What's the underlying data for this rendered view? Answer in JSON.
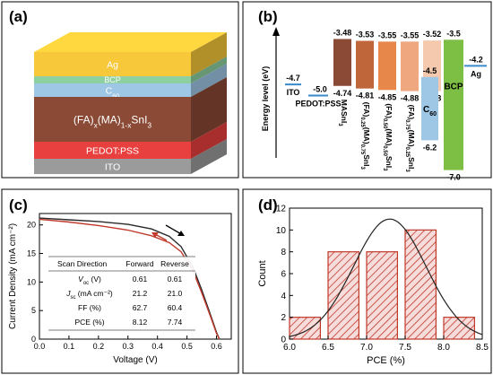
{
  "panels": {
    "a": "(a)",
    "b": "(b)",
    "c": "(c)",
    "d": "(d)"
  },
  "device_stack": {
    "layers": [
      {
        "name": "Ag",
        "color": "#f6c83a"
      },
      {
        "name": "BCP",
        "color": "#8fd0a0"
      },
      {
        "name": "C",
        "sub": "60",
        "color": "#9ec7e6"
      },
      {
        "name": "(FA)",
        "sub": "x",
        "name2": "(MA)",
        "sub2": "1-x",
        "name3": "SnI",
        "sub3": "3",
        "color": "#8b4a36"
      },
      {
        "name": "PEDOT:PSS",
        "color": "#e8403f"
      },
      {
        "name": "ITO",
        "color": "#9b9b9b"
      }
    ]
  },
  "chart_data": [
    {
      "type": "bar",
      "panel": "b",
      "ylabel": "Energy level (eV)",
      "electrodes": [
        {
          "label": "ITO",
          "level": "-4.7"
        },
        {
          "label": "PEDOT:PSS",
          "level": "-5.0"
        },
        {
          "label": "Ag",
          "level": "-4.2"
        }
      ],
      "bars": [
        {
          "label": "MASnI",
          "sub": "3",
          "top": -3.48,
          "bottom": -4.74,
          "top_label": "-3.48",
          "bottom_label": "-4.74",
          "color": "#8b4a36"
        },
        {
          "label_parts": [
            [
              "(FA)",
              ""
            ],
            [
              "0.25",
              "sub"
            ],
            [
              "(MA)",
              ""
            ],
            [
              "0.75",
              "sub"
            ],
            [
              "SnI",
              ""
            ],
            [
              "3",
              "sub"
            ]
          ],
          "top": -3.53,
          "bottom": -4.81,
          "top_label": "-3.53",
          "bottom_label": "-4.81",
          "color": "#c0663b"
        },
        {
          "label_parts": [
            [
              "(FA)",
              ""
            ],
            [
              "0.50",
              "sub"
            ],
            [
              "(MA)",
              ""
            ],
            [
              "0.50",
              "sub"
            ],
            [
              "SnI",
              ""
            ],
            [
              "3",
              "sub"
            ]
          ],
          "top": -3.55,
          "bottom": -4.85,
          "top_label": "-3.55",
          "bottom_label": "-4.85",
          "color": "#e7874a"
        },
        {
          "label_parts": [
            [
              "(FA)",
              ""
            ],
            [
              "0.75",
              "sub"
            ],
            [
              "(MA)",
              ""
            ],
            [
              "0.25",
              "sub"
            ],
            [
              "SnI",
              ""
            ],
            [
              "3",
              "sub"
            ]
          ],
          "top": -3.55,
          "bottom": -4.88,
          "top_label": "-3.55",
          "bottom_label": "-4.88",
          "color": "#eea77e"
        },
        {
          "label": "FASnI",
          "sub": "3",
          "top": -3.52,
          "bottom": -4.88,
          "top_label": "-3.52",
          "bottom_label": "-4.88",
          "color": "#f5c9ae"
        },
        {
          "label": "C",
          "sub": "60",
          "top": -4.5,
          "bottom": -6.2,
          "top_label": "-4.5",
          "bottom_label": "-6.2",
          "color": "#9ec7e6"
        },
        {
          "label": "BCP",
          "top": -3.5,
          "bottom": -7.0,
          "top_label": "-3.5",
          "bottom_label": "-7.0",
          "color": "#7dbf45"
        }
      ]
    },
    {
      "type": "line",
      "panel": "c",
      "xlabel": "Voltage (V)",
      "ylabel": "Current Density (mA cm⁻²)",
      "xlim": [
        0.0,
        0.65
      ],
      "ylim": [
        0,
        22
      ],
      "xticks": [
        "0.0",
        "0.1",
        "0.2",
        "0.3",
        "0.4",
        "0.5",
        "0.6"
      ],
      "yticks": [
        "0",
        "5",
        "10",
        "15",
        "20"
      ],
      "series": [
        {
          "color": "#2a2a2a",
          "x": [
            0,
            0.1,
            0.2,
            0.3,
            0.38,
            0.44,
            0.48,
            0.52,
            0.55,
            0.58,
            0.6,
            0.61
          ],
          "y": [
            21.2,
            20.9,
            20.6,
            20.1,
            19.3,
            18.0,
            16.2,
            12.6,
            8.6,
            4.2,
            1.2,
            0
          ]
        },
        {
          "color": "#c0392b",
          "x": [
            0,
            0.1,
            0.2,
            0.3,
            0.38,
            0.44,
            0.48,
            0.52,
            0.55,
            0.58,
            0.6,
            0.61
          ],
          "y": [
            21.0,
            20.5,
            19.9,
            19.1,
            18.1,
            16.9,
            15.3,
            12.0,
            8.1,
            3.9,
            1.0,
            0
          ]
        }
      ],
      "table": {
        "header": [
          "Scan Direction",
          "Forward",
          "Reverse"
        ],
        "rows": [
          {
            "param": "V",
            "sub": "oc",
            "unit": " (V)",
            "forward": "0.61",
            "reverse": "0.61"
          },
          {
            "param": "J",
            "sub": "sc",
            "unit": " (mA cm⁻²)",
            "forward": "21.2",
            "reverse": "21.0"
          },
          {
            "param": "FF",
            "sub": "",
            "unit": " (%)",
            "forward": "62.7",
            "reverse": "60.4"
          },
          {
            "param": "PCE",
            "sub": "",
            "unit": " (%)",
            "forward": "8.12",
            "reverse": "7.74"
          }
        ]
      }
    },
    {
      "type": "bar",
      "panel": "d",
      "xlabel": "PCE (%)",
      "ylabel": "Count",
      "xlim": [
        6.0,
        8.5
      ],
      "ylim": [
        0,
        12
      ],
      "xticks": [
        "6.0",
        "6.5",
        "7.0",
        "7.5",
        "8.0",
        "8.5"
      ],
      "yticks": [
        "0",
        "2",
        "4",
        "6",
        "8",
        "10",
        "12"
      ],
      "bins": [
        {
          "from": 6.0,
          "to": 6.4,
          "count": 2
        },
        {
          "from": 6.5,
          "to": 6.9,
          "count": 8
        },
        {
          "from": 7.0,
          "to": 7.4,
          "count": 8
        },
        {
          "from": 7.5,
          "to": 7.9,
          "count": 10
        },
        {
          "from": 8.0,
          "to": 8.4,
          "count": 2
        }
      ],
      "fit": {
        "mean": 7.3,
        "sigma": 0.47,
        "peak": 11.0
      },
      "bar_color": "#c0392b"
    }
  ]
}
